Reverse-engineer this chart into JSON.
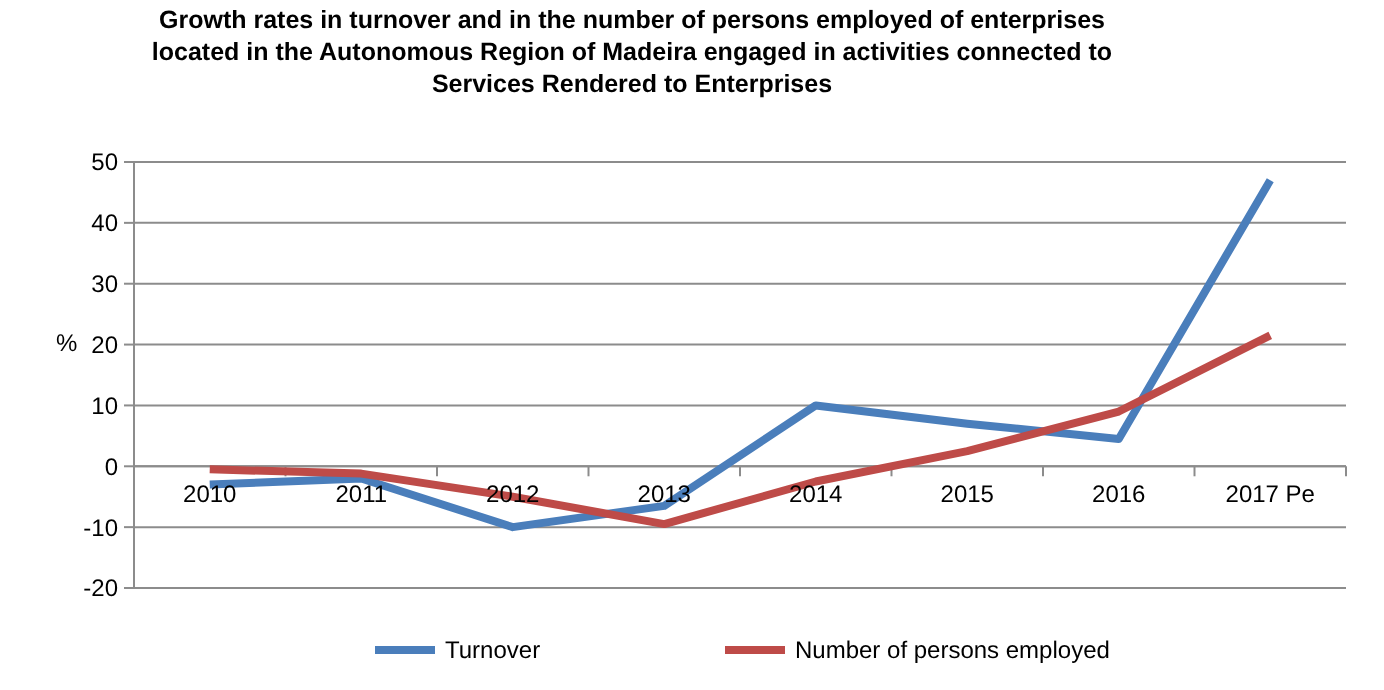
{
  "chart_data": {
    "type": "line",
    "title": "Growth rates in turnover and in the number of persons  employed of enterprises\nlocated in the Autonomous  Region of Madeira engaged in activities connected to\nServices Rendered to Enterprises",
    "ylabel": "%",
    "categories": [
      "2010",
      "2011",
      "2012",
      "2013",
      "2014",
      "2015",
      "2016",
      "2017 Pe"
    ],
    "series": [
      {
        "name": "Turnover",
        "color": "#4a7ebb",
        "values": [
          -3,
          -2,
          -10,
          -6.5,
          10,
          7,
          4.5,
          47
        ]
      },
      {
        "name": "Number of persons employed",
        "color": "#be4b48",
        "values": [
          -0.5,
          -1.2,
          -5,
          -9.5,
          -2.5,
          2.5,
          9,
          21.5
        ]
      }
    ],
    "ylim": [
      -20,
      50
    ],
    "yticks": [
      -20,
      -10,
      0,
      10,
      20,
      30,
      40,
      50
    ],
    "grid": "y",
    "legend": "bottom",
    "marker": "none",
    "line_style": "solid"
  }
}
